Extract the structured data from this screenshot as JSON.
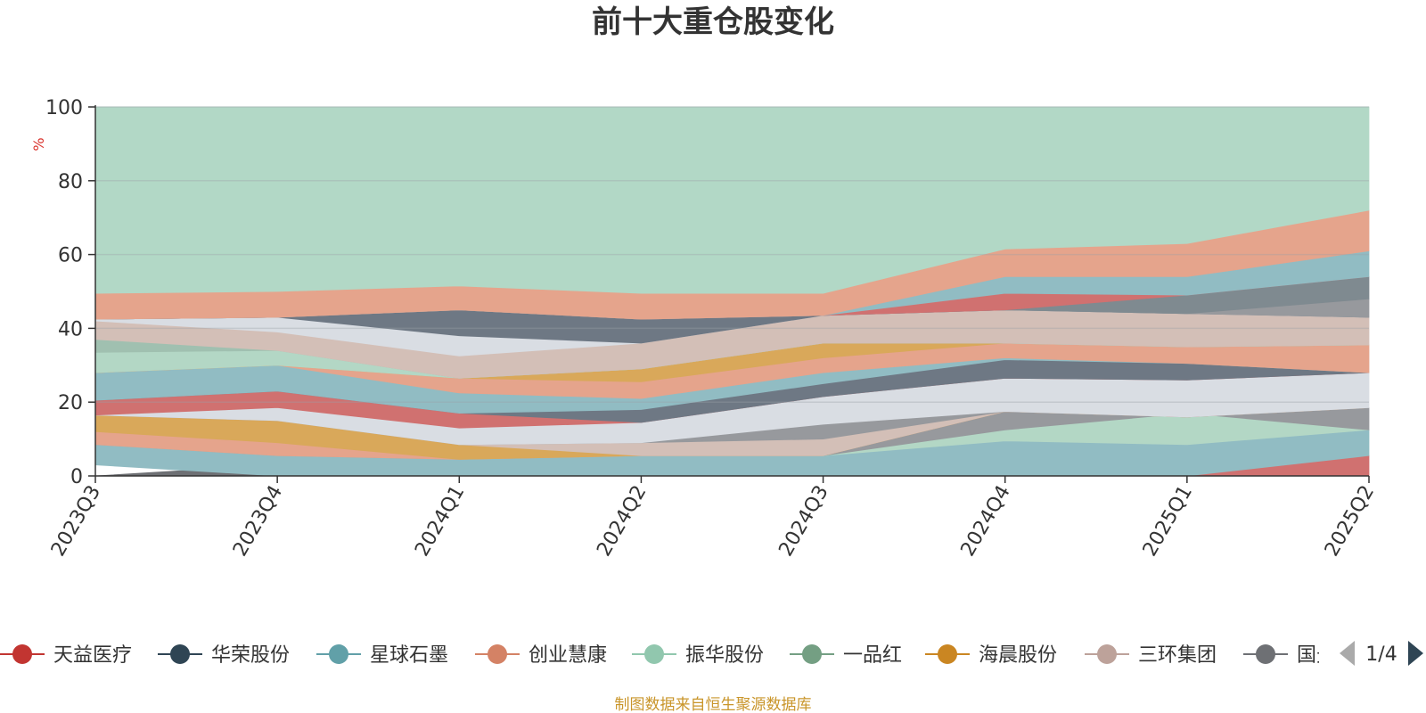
{
  "title": "前十大重仓股变化",
  "unit": "%",
  "source": "制图数据来自恒生聚源数据库",
  "legend_page": "1/4",
  "chart_data": {
    "type": "area",
    "stacked": true,
    "categories": [
      "2023Q3",
      "2023Q4",
      "2024Q1",
      "2024Q2",
      "2024Q3",
      "2024Q4",
      "2025Q1",
      "2025Q2"
    ],
    "ylim": [
      0,
      100
    ],
    "yticks": [
      0,
      20,
      40,
      60,
      80,
      100
    ],
    "grid": true,
    "legend_position": "bottom",
    "series": [
      {
        "name": "",
        "color": "#6e7074",
        "values": [
          3,
          0,
          0,
          0,
          0,
          0,
          0,
          0
        ]
      },
      {
        "name": "",
        "color": "#91bcc3",
        "values": [
          5.5,
          5.5,
          4.5,
          5.5,
          5.5,
          9.5,
          8.5,
          7
        ]
      },
      {
        "name": "",
        "color": "#e5a48c",
        "values": [
          3.5,
          3.5,
          0,
          0,
          0,
          0,
          0,
          0
        ]
      },
      {
        "name": "",
        "color": "#d9a85a",
        "values": [
          5,
          6,
          4,
          0,
          0,
          0,
          0,
          0
        ]
      },
      {
        "name": "",
        "color": "#d9dde3",
        "values": [
          0,
          3.5,
          0,
          0,
          0,
          0,
          0,
          0
        ]
      },
      {
        "name": "",
        "color": "#d07170",
        "values": [
          4,
          4,
          4,
          0,
          0,
          0,
          0,
          0
        ]
      },
      {
        "name": "",
        "color": "#91bcc3",
        "values": [
          7.5,
          7.5,
          0,
          0,
          0,
          0,
          0,
          0
        ]
      },
      {
        "name": "",
        "color": "#b3d7c5",
        "values": [
          5.5,
          4,
          0,
          0,
          0,
          0,
          0,
          0
        ]
      },
      {
        "name": "",
        "color": "#a0c0b0",
        "values": [
          3.5,
          0,
          0,
          0,
          0,
          0,
          0,
          0
        ]
      },
      {
        "name": "",
        "color": "#d3bfb7",
        "values": [
          5,
          4,
          0,
          0,
          0,
          0,
          0,
          0
        ]
      },
      {
        "name": "",
        "color": "#d9dde3",
        "values": [
          0,
          0,
          0,
          0,
          0,
          0,
          0,
          0
        ]
      },
      {
        "name": "",
        "color": "#e5a48c",
        "values": [
          7,
          7,
          0,
          0,
          0,
          0,
          0,
          0
        ]
      },
      {
        "name": "",
        "color": "#b2d8c6",
        "values": [
          50.5,
          50,
          0,
          0,
          0,
          0,
          0,
          0
        ]
      }
    ],
    "bands": [
      {
        "color": "#6e7074",
        "points": [
          [
            0,
            0
          ],
          [
            3,
            0
          ],
          [
            0,
            0
          ],
          [
            0,
            0
          ],
          [
            0,
            0
          ],
          [
            0,
            0
          ],
          [
            0,
            0
          ],
          [
            0,
            0
          ]
        ]
      },
      {
        "color": "#d07170",
        "points": [
          [
            0,
            0
          ],
          [
            0,
            0
          ],
          [
            0,
            0
          ],
          [
            0,
            0
          ],
          [
            0,
            0
          ],
          [
            0,
            0
          ],
          [
            0,
            0
          ],
          [
            0,
            5.5
          ]
        ]
      },
      {
        "color": "#91bcc3",
        "points": [
          [
            3,
            8.5
          ],
          [
            0,
            5.5
          ],
          [
            0,
            4.5
          ],
          [
            0,
            5.5
          ],
          [
            0,
            5.5
          ],
          [
            0,
            9.5
          ],
          [
            0,
            8.5
          ],
          [
            5.5,
            12.5
          ]
        ]
      },
      {
        "color": "#b3d7c5",
        "points": [
          [
            8.5,
            8.5
          ],
          [
            5.5,
            5.5
          ],
          [
            4.5,
            4.5
          ],
          [
            5.5,
            5.5
          ],
          [
            5.5,
            5.5
          ],
          [
            9.5,
            12.5
          ],
          [
            8.5,
            17
          ],
          [
            12.5,
            12.5
          ]
        ]
      },
      {
        "color": "#97999d",
        "points": [
          [
            8.5,
            8.5
          ],
          [
            5.5,
            5.5
          ],
          [
            4.5,
            4.5
          ],
          [
            5.5,
            5.5
          ],
          [
            5.5,
            5.5
          ],
          [
            12.5,
            17.5
          ],
          [
            17,
            16
          ],
          [
            12.5,
            18.5
          ]
        ]
      },
      {
        "color": "#e5a48c",
        "points": [
          [
            8.5,
            12
          ],
          [
            5.5,
            9
          ],
          [
            4.5,
            4.5
          ],
          [
            5.5,
            5.5
          ],
          [
            5.5,
            5.5
          ],
          [
            17.5,
            17.5
          ],
          [
            16,
            16
          ],
          [
            18.5,
            18.5
          ]
        ]
      },
      {
        "color": "#d9a85a",
        "points": [
          [
            12,
            16.5
          ],
          [
            9,
            15
          ],
          [
            4.5,
            8.5
          ],
          [
            5.5,
            5.5
          ],
          [
            5.5,
            5.5
          ],
          [
            17.5,
            17.5
          ],
          [
            16,
            16
          ],
          [
            18.5,
            18.5
          ]
        ]
      },
      {
        "color": "#d3bfb7",
        "points": [
          [
            16.5,
            16.5
          ],
          [
            15,
            15
          ],
          [
            8.5,
            8.5
          ],
          [
            5.5,
            9
          ],
          [
            5.5,
            10
          ],
          [
            17.5,
            17.5
          ],
          [
            16,
            16
          ],
          [
            18.5,
            18.5
          ]
        ]
      },
      {
        "color": "#97999d",
        "points": [
          [
            16.5,
            16.5
          ],
          [
            15,
            15
          ],
          [
            8.5,
            8.5
          ],
          [
            9,
            9
          ],
          [
            10,
            14
          ],
          [
            17.5,
            17.5
          ],
          [
            16,
            16
          ],
          [
            18.5,
            18.5
          ]
        ]
      },
      {
        "color": "#d9dde3",
        "points": [
          [
            16.5,
            16.5
          ],
          [
            15,
            18.5
          ],
          [
            8.5,
            13
          ],
          [
            9,
            14.5
          ],
          [
            14,
            21.5
          ],
          [
            17.5,
            26.5
          ],
          [
            16,
            26
          ],
          [
            18.5,
            28
          ]
        ]
      },
      {
        "color": "#d07170",
        "points": [
          [
            16.5,
            20.5
          ],
          [
            18.5,
            23
          ],
          [
            13,
            17
          ],
          [
            14.5,
            14.5
          ],
          [
            21.5,
            21.5
          ],
          [
            26.5,
            26.5
          ],
          [
            26,
            26
          ],
          [
            28,
            28
          ]
        ]
      },
      {
        "color": "#6e7884",
        "points": [
          [
            20.5,
            20.5
          ],
          [
            23,
            23
          ],
          [
            17,
            17
          ],
          [
            14.5,
            18
          ],
          [
            21.5,
            25
          ],
          [
            26.5,
            31.5
          ],
          [
            26,
            30.5
          ],
          [
            28,
            28
          ]
        ]
      },
      {
        "color": "#91bcc3",
        "points": [
          [
            20.5,
            28
          ],
          [
            23,
            30
          ],
          [
            17,
            22.5
          ],
          [
            18,
            21
          ],
          [
            25,
            28
          ],
          [
            31.5,
            32
          ],
          [
            30.5,
            30.5
          ],
          [
            28,
            28
          ]
        ]
      },
      {
        "color": "#e5a48c",
        "points": [
          [
            28,
            28
          ],
          [
            30,
            30
          ],
          [
            22.5,
            26.5
          ],
          [
            21,
            25.5
          ],
          [
            28,
            32
          ],
          [
            32,
            36
          ],
          [
            30.5,
            35
          ],
          [
            28,
            35.5
          ]
        ]
      },
      {
        "color": "#d9a85a",
        "points": [
          [
            28,
            28
          ],
          [
            30,
            30
          ],
          [
            26.5,
            26.5
          ],
          [
            25.5,
            29
          ],
          [
            32,
            36
          ],
          [
            36,
            36
          ],
          [
            35,
            35
          ],
          [
            35.5,
            35.5
          ]
        ]
      },
      {
        "color": "#b3d7c5",
        "points": [
          [
            28,
            33.5
          ],
          [
            30,
            34
          ],
          [
            26.5,
            26.5
          ],
          [
            29,
            29
          ],
          [
            36,
            36
          ],
          [
            36,
            36
          ],
          [
            35,
            35
          ],
          [
            35.5,
            35.5
          ]
        ]
      },
      {
        "color": "#a0c0b0",
        "points": [
          [
            33.5,
            37
          ],
          [
            34,
            34
          ],
          [
            26.5,
            26.5
          ],
          [
            29,
            29
          ],
          [
            36,
            36
          ],
          [
            36,
            36
          ],
          [
            35,
            35
          ],
          [
            35.5,
            35.5
          ]
        ]
      },
      {
        "color": "#d3bfb7",
        "points": [
          [
            37,
            42
          ],
          [
            34,
            39
          ],
          [
            26.5,
            32.5
          ],
          [
            29,
            36
          ],
          [
            36,
            43.5
          ],
          [
            36,
            45
          ],
          [
            35,
            44
          ],
          [
            35.5,
            43
          ]
        ]
      },
      {
        "color": "#d9dde3",
        "points": [
          [
            42,
            42.5
          ],
          [
            39,
            43
          ],
          [
            32.5,
            38
          ],
          [
            36,
            36
          ],
          [
            43.5,
            43.5
          ],
          [
            45,
            45
          ],
          [
            44,
            44
          ],
          [
            43,
            43
          ]
        ]
      },
      {
        "color": "#6e7884",
        "points": [
          [
            42.5,
            42.5
          ],
          [
            43,
            43
          ],
          [
            38,
            45
          ],
          [
            36,
            42.5
          ],
          [
            43.5,
            43.5
          ],
          [
            45,
            45
          ],
          [
            44,
            44
          ],
          [
            43,
            43
          ]
        ]
      },
      {
        "color": "#97999d",
        "points": [
          [
            42.5,
            42.5
          ],
          [
            43,
            43
          ],
          [
            45,
            45
          ],
          [
            42.5,
            42.5
          ],
          [
            43.5,
            43.5
          ],
          [
            45,
            45
          ],
          [
            44,
            44
          ],
          [
            43,
            48
          ]
        ]
      },
      {
        "color": "#7f8a90",
        "points": [
          [
            42.5,
            42.5
          ],
          [
            43,
            43
          ],
          [
            45,
            45
          ],
          [
            42.5,
            42.5
          ],
          [
            43.5,
            43.5
          ],
          [
            45,
            45
          ],
          [
            44,
            49
          ],
          [
            48,
            54
          ]
        ]
      },
      {
        "color": "#d07170",
        "points": [
          [
            42.5,
            42.5
          ],
          [
            43,
            43
          ],
          [
            45,
            45
          ],
          [
            42.5,
            42.5
          ],
          [
            43.5,
            43.5
          ],
          [
            45,
            49.5
          ],
          [
            49,
            49
          ],
          [
            54,
            54
          ]
        ]
      },
      {
        "color": "#91bcc3",
        "points": [
          [
            42.5,
            42.5
          ],
          [
            43,
            43
          ],
          [
            45,
            45
          ],
          [
            42.5,
            42.5
          ],
          [
            43.5,
            43.5
          ],
          [
            49.5,
            54
          ],
          [
            49,
            54
          ],
          [
            54,
            61
          ]
        ]
      },
      {
        "color": "#e5a48c",
        "points": [
          [
            42.5,
            49.5
          ],
          [
            43,
            50
          ],
          [
            45,
            51.5
          ],
          [
            42.5,
            49.5
          ],
          [
            43.5,
            49.5
          ],
          [
            54,
            61.5
          ],
          [
            54,
            63
          ],
          [
            61,
            72
          ]
        ]
      },
      {
        "color": "#b2d8c6",
        "points": [
          [
            49.5,
            100
          ],
          [
            50,
            100
          ],
          [
            51.5,
            100
          ],
          [
            49.5,
            100
          ],
          [
            49.5,
            100
          ],
          [
            61.5,
            100
          ],
          [
            63,
            100
          ],
          [
            72,
            100
          ]
        ]
      }
    ]
  },
  "legend": [
    {
      "label": "天益医疗",
      "color": "#c23531"
    },
    {
      "label": "华荣股份",
      "color": "#2f4554"
    },
    {
      "label": "星球石墨",
      "color": "#61a0a8"
    },
    {
      "label": "创业慧康",
      "color": "#d48265"
    },
    {
      "label": "振华股份",
      "color": "#91c7ae"
    },
    {
      "label": "一品红",
      "color": "#749f83"
    },
    {
      "label": "海晨股份",
      "color": "#ca8622"
    },
    {
      "label": "三环集团",
      "color": "#bda29a"
    },
    {
      "label": "国光",
      "color": "#6e7074"
    }
  ]
}
